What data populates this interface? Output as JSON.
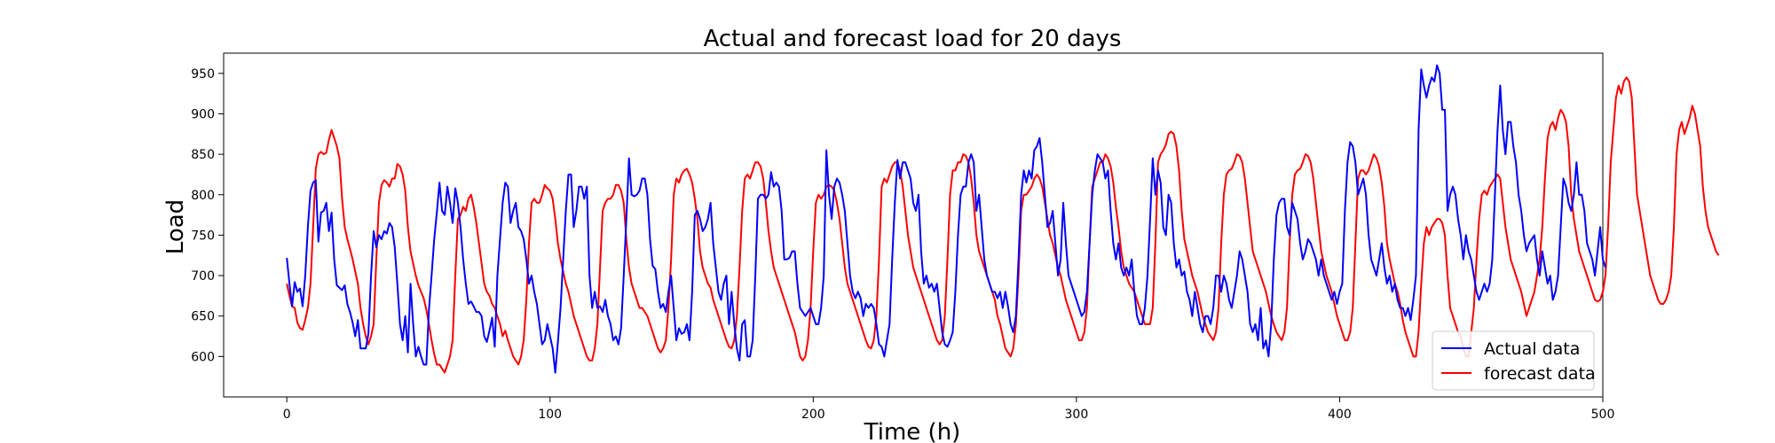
{
  "chart_data": {
    "type": "line",
    "title": "Actual and forecast load for 20 days",
    "xlabel": "Time (h)",
    "ylabel": "Load",
    "xlim": [
      -24,
      500
    ],
    "ylim": [
      550,
      975
    ],
    "xticks": [
      0,
      100,
      200,
      300,
      400,
      500
    ],
    "yticks": [
      600,
      650,
      700,
      750,
      800,
      850,
      900,
      950
    ],
    "grid": false,
    "legend_position": "lower-right",
    "x_start": 0,
    "x_step": 1,
    "series": [
      {
        "name": "Actual data",
        "color": "#0000ff",
        "values": [
          722,
          690,
          662,
          692,
          680,
          684,
          662,
          700,
          760,
          805,
          815,
          818,
          742,
          778,
          780,
          790,
          755,
          778,
          720,
          688,
          685,
          682,
          688,
          665,
          655,
          642,
          625,
          645,
          610,
          610,
          610,
          628,
          700,
          755,
          735,
          750,
          745,
          755,
          752,
          765,
          760,
          735,
          690,
          640,
          620,
          650,
          605,
          690,
          640,
          600,
          612,
          600,
          590,
          590,
          658,
          700,
          745,
          778,
          815,
          780,
          775,
          810,
          790,
          765,
          808,
          790,
          760,
          720,
          690,
          665,
          668,
          662,
          655,
          655,
          650,
          625,
          618,
          632,
          648,
          612,
          700,
          745,
          790,
          815,
          810,
          765,
          780,
          790,
          760,
          755,
          745,
          720,
          690,
          700,
          680,
          665,
          640,
          615,
          620,
          640,
          625,
          610,
          580,
          618,
          660,
          720,
          780,
          825,
          825,
          760,
          780,
          810,
          810,
          795,
          810,
          700,
          660,
          680,
          660,
          662,
          655,
          670,
          650,
          640,
          620,
          625,
          615,
          635,
          700,
          770,
          845,
          800,
          798,
          800,
          805,
          820,
          820,
          800,
          745,
          712,
          708,
          680,
          660,
          665,
          655,
          680,
          700,
          660,
          620,
          635,
          628,
          630,
          640,
          620,
          680,
          775,
          780,
          770,
          755,
          760,
          770,
          790,
          740,
          710,
          680,
          670,
          690,
          700,
          640,
          680,
          640,
          610,
          595,
          640,
          645,
          600,
          600,
          620,
          700,
          795,
          800,
          800,
          795,
          800,
          828,
          810,
          815,
          810,
          780,
          720,
          720,
          722,
          730,
          730,
          690,
          660,
          655,
          650,
          655,
          660,
          650,
          640,
          640,
          660,
          700,
          855,
          800,
          770,
          810,
          820,
          815,
          800,
          780,
          740,
          700,
          680,
          672,
          680,
          672,
          650,
          665,
          660,
          665,
          660,
          640,
          615,
          612,
          600,
          620,
          640,
          720,
          790,
          843,
          820,
          840,
          840,
          830,
          820,
          790,
          780,
          800,
          730,
          690,
          700,
          685,
          690,
          680,
          690,
          660,
          630,
          615,
          612,
          620,
          630,
          680,
          750,
          800,
          810,
          810,
          840,
          850,
          840,
          780,
          800,
          760,
          720,
          700,
          690,
          680,
          680,
          672,
          680,
          660,
          680,
          662,
          640,
          630,
          650,
          720,
          800,
          830,
          815,
          830,
          820,
          855,
          860,
          870,
          840,
          800,
          760,
          765,
          780,
          740,
          700,
          720,
          790,
          740,
          700,
          690,
          680,
          670,
          660,
          650,
          655,
          680,
          740,
          800,
          830,
          850,
          845,
          840,
          820,
          830,
          780,
          740,
          720,
          740,
          710,
          700,
          710,
          700,
          720,
          680,
          650,
          640,
          640,
          660,
          700,
          770,
          845,
          800,
          830,
          815,
          760,
          750,
          800,
          790,
          740,
          710,
          720,
          700,
          705,
          680,
          670,
          650,
          680,
          660,
          640,
          630,
          650,
          650,
          640,
          660,
          700,
          700,
          680,
          700,
          690,
          670,
          660,
          680,
          700,
          730,
          720,
          700,
          680,
          640,
          630,
          640,
          620,
          660,
          610,
          620,
          600,
          640,
          720,
          775,
          790,
          795,
          795,
          760,
          750,
          790,
          780,
          770,
          740,
          720,
          730,
          745,
          740,
          730,
          720,
          700,
          720,
          700,
          690,
          680,
          670,
          680,
          665,
          680,
          690,
          780,
          840,
          865,
          860,
          840,
          800,
          810,
          820,
          800,
          750,
          720,
          710,
          700,
          720,
          740,
          710,
          690,
          700,
          680,
          690,
          670,
          660,
          660,
          650,
          660,
          645,
          670,
          700,
          880,
          955,
          935,
          920,
          935,
          945,
          940,
          960,
          950,
          905,
          905,
          780,
          800,
          810,
          800,
          770,
          750,
          720,
          750,
          730,
          720,
          700,
          680,
          670,
          680,
          690,
          680,
          690,
          720,
          800,
          880,
          935,
          880,
          850,
          890,
          890,
          860,
          840,
          800,
          780,
          750,
          730,
          740,
          745,
          750,
          720,
          700,
          730,
          710,
          690,
          700,
          670,
          680,
          700,
          760,
          820,
          810,
          790,
          780,
          800,
          840,
          800,
          800,
          780,
          740,
          730,
          720,
          700,
          730,
          760,
          720,
          710
        ]
      },
      {
        "name": "forecast data",
        "color": "#ff0000",
        "values": [
          690,
          675,
          662,
          660,
          642,
          635,
          633,
          645,
          660,
          690,
          760,
          832,
          850,
          853,
          850,
          852,
          868,
          880,
          870,
          860,
          845,
          795,
          760,
          745,
          733,
          720,
          705,
          690,
          660,
          640,
          625,
          615,
          625,
          640,
          720,
          790,
          812,
          818,
          815,
          810,
          820,
          820,
          838,
          835,
          825,
          805,
          760,
          730,
          715,
          700,
          688,
          680,
          672,
          658,
          640,
          620,
          603,
          590,
          590,
          585,
          580,
          590,
          600,
          620,
          700,
          770,
          775,
          785,
          780,
          795,
          800,
          785,
          765,
          740,
          715,
          690,
          680,
          675,
          665,
          660,
          650,
          640,
          625,
          632,
          620,
          610,
          600,
          595,
          590,
          600,
          620,
          670,
          740,
          790,
          795,
          790,
          790,
          800,
          812,
          808,
          805,
          795,
          770,
          740,
          720,
          705,
          690,
          680,
          665,
          650,
          640,
          630,
          620,
          610,
          600,
          595,
          595,
          610,
          640,
          710,
          780,
          790,
          795,
          795,
          800,
          812,
          812,
          805,
          790,
          745,
          710,
          690,
          680,
          670,
          660,
          660,
          655,
          650,
          640,
          630,
          620,
          610,
          605,
          610,
          620,
          660,
          720,
          800,
          820,
          815,
          825,
          830,
          832,
          825,
          815,
          795,
          770,
          730,
          710,
          700,
          690,
          685,
          670,
          660,
          650,
          640,
          630,
          620,
          612,
          610,
          620,
          650,
          710,
          780,
          820,
          825,
          820,
          830,
          840,
          840,
          835,
          820,
          790,
          755,
          730,
          710,
          700,
          690,
          680,
          670,
          660,
          650,
          640,
          630,
          615,
          600,
          595,
          600,
          620,
          660,
          730,
          790,
          800,
          795,
          800,
          810,
          812,
          810,
          805,
          790,
          770,
          740,
          710,
          690,
          680,
          670,
          660,
          650,
          640,
          630,
          620,
          612,
          610,
          620,
          650,
          720,
          810,
          820,
          815,
          825,
          835,
          840,
          840,
          830,
          810,
          780,
          750,
          730,
          710,
          700,
          690,
          680,
          670,
          660,
          650,
          640,
          630,
          620,
          615,
          620,
          650,
          720,
          800,
          830,
          830,
          840,
          840,
          850,
          848,
          840,
          820,
          790,
          750,
          730,
          720,
          710,
          700,
          690,
          680,
          670,
          650,
          640,
          625,
          610,
          605,
          600,
          610,
          640,
          700,
          780,
          800,
          800,
          805,
          810,
          820,
          825,
          820,
          810,
          790,
          770,
          750,
          740,
          725,
          710,
          700,
          685,
          670,
          660,
          650,
          640,
          630,
          620,
          620,
          630,
          660,
          740,
          810,
          820,
          830,
          840,
          840,
          850,
          845,
          835,
          815,
          785,
          760,
          730,
          710,
          700,
          690,
          685,
          680,
          670,
          660,
          650,
          640,
          640,
          640,
          660,
          740,
          840,
          850,
          855,
          862,
          875,
          878,
          875,
          860,
          830,
          780,
          745,
          730,
          715,
          700,
          690,
          680,
          665,
          650,
          640,
          630,
          625,
          620,
          630,
          660,
          740,
          800,
          825,
          830,
          832,
          840,
          850,
          848,
          840,
          820,
          790,
          760,
          730,
          720,
          710,
          700,
          690,
          680,
          665,
          650,
          640,
          630,
          625,
          620,
          630,
          660,
          740,
          800,
          825,
          830,
          832,
          840,
          850,
          848,
          840,
          820,
          790,
          760,
          730,
          715,
          700,
          690,
          680,
          665,
          650,
          640,
          630,
          620,
          620,
          630,
          660,
          740,
          820,
          830,
          830,
          825,
          830,
          840,
          850,
          845,
          835,
          815,
          785,
          740,
          720,
          705,
          690,
          680,
          665,
          645,
          630,
          620,
          610,
          600,
          600,
          630,
          690,
          740,
          760,
          750,
          760,
          765,
          770,
          770,
          765,
          750,
          700,
          660,
          650,
          640,
          630,
          625,
          610,
          600,
          600,
          630,
          660,
          720,
          770,
          800,
          805,
          800,
          810,
          815,
          820,
          825,
          820,
          790,
          760,
          740,
          720,
          710,
          700,
          690,
          680,
          665,
          650,
          660,
          670,
          680,
          700,
          720,
          760,
          820,
          870,
          885,
          890,
          880,
          895,
          905,
          900,
          890,
          860,
          800,
          770,
          750,
          730,
          720,
          710,
          700,
          690,
          680,
          670,
          668,
          670,
          680,
          700,
          760,
          840,
          880,
          920,
          935,
          925,
          940,
          945,
          940,
          920,
          860,
          800,
          780,
          760,
          740,
          720,
          700,
          690,
          680,
          670,
          665,
          665,
          670,
          680,
          700,
          760,
          850,
          880,
          890,
          875,
          885,
          895,
          910,
          900,
          880,
          860,
          810,
          780,
          760,
          750,
          740,
          730,
          725
        ]
      }
    ]
  }
}
